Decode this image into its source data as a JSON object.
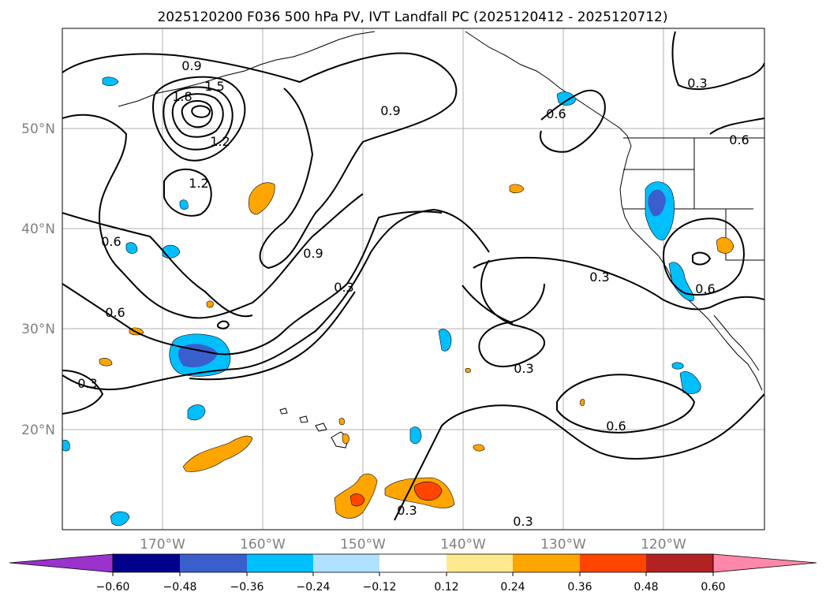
{
  "title": "2025120200 F036 500 hPa PV, IVT Landfall PC (2025120412 - 2025120712)",
  "map": {
    "projection": "PlateCarree",
    "lon_range": [
      -180,
      -110
    ],
    "lat_range": [
      10,
      60
    ],
    "grid": true,
    "lat_ticks": [
      "20°N",
      "30°N",
      "40°N",
      "50°N"
    ],
    "lon_ticks": [
      "170°W",
      "160°W",
      "150°W",
      "140°W",
      "130°W",
      "120°W"
    ],
    "fill_field_name": "IVT Landfall PC",
    "contour_field_name": "500 hPa PV",
    "contour_labels": [
      "0.9",
      "1.5",
      "1.8",
      "1.2",
      "1.2",
      "0.6",
      "0.6",
      "0.9",
      "0.9",
      "0.3",
      "0.3",
      "0.6",
      "0.3",
      "0.6",
      "0.3",
      "0.6",
      "0.3",
      "0.3",
      "0.3",
      "0.6"
    ]
  },
  "colorbar": {
    "ticks": [
      "−0.60",
      "−0.48",
      "−0.36",
      "−0.24",
      "−0.12",
      "0.12",
      "0.24",
      "0.36",
      "0.48",
      "0.60"
    ],
    "colors": [
      "#9933cc",
      "#00008b",
      "#3a5fcd",
      "#00bfff",
      "#b0e2ff",
      "#ffffff",
      "#ffe98f",
      "#ffa500",
      "#ff4500",
      "#b22222",
      "#ff88aa"
    ],
    "extend": "both"
  }
}
